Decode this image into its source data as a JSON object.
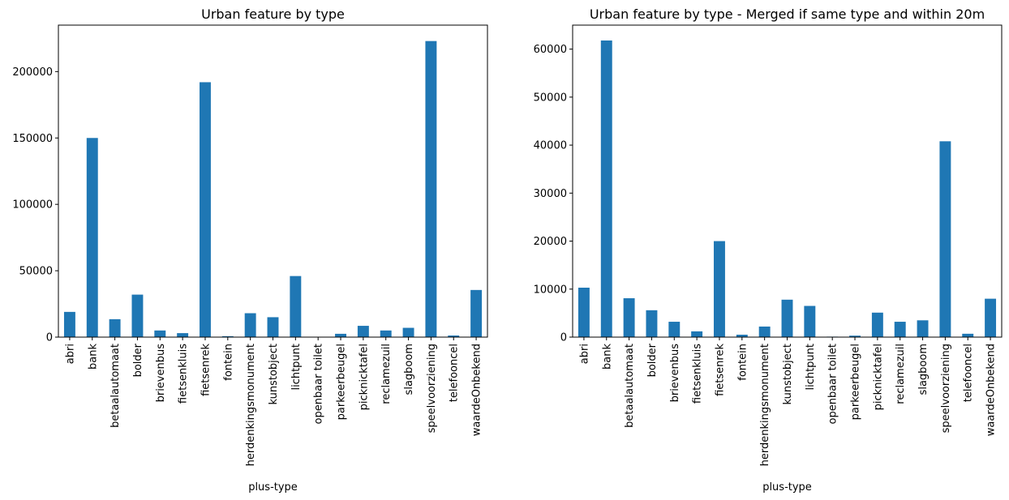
{
  "chart_data": [
    {
      "type": "bar",
      "title": "Urban feature by type",
      "xlabel": "plus-type",
      "ylabel": "",
      "ylim": [
        0,
        235000
      ],
      "yticks": [
        0,
        50000,
        100000,
        150000,
        200000
      ],
      "color": "#1f77b4",
      "categories": [
        "abri",
        "bank",
        "betaalautomaat",
        "bolder",
        "brievenbus",
        "fietsenkluis",
        "fietsenrek",
        "fontein",
        "herdenkingsmonument",
        "kunstobject",
        "lichtpunt",
        "openbaar toilet",
        "parkeerbeugel",
        "picknicktafel",
        "reclamezuil",
        "slagboom",
        "speelvoorziening",
        "telefooncel",
        "waardeOnbekend"
      ],
      "values": [
        19000,
        150000,
        13500,
        32000,
        5000,
        3000,
        192000,
        700,
        18000,
        15000,
        46000,
        300,
        2500,
        8500,
        5000,
        7000,
        223000,
        1200,
        35500
      ]
    },
    {
      "type": "bar",
      "title": "Urban feature by type - Merged if same type and within 20m",
      "xlabel": "plus-type",
      "ylabel": "",
      "ylim": [
        0,
        65000
      ],
      "yticks": [
        0,
        10000,
        20000,
        30000,
        40000,
        50000,
        60000
      ],
      "color": "#1f77b4",
      "categories": [
        "abri",
        "bank",
        "betaalautomaat",
        "bolder",
        "brievenbus",
        "fietsenkluis",
        "fietsenrek",
        "fontein",
        "herdenkingsmonument",
        "kunstobject",
        "lichtpunt",
        "openbaar toilet",
        "parkeerbeugel",
        "picknicktafel",
        "reclamezuil",
        "slagboom",
        "speelvoorziening",
        "telefooncel",
        "waardeOnbekend"
      ],
      "values": [
        10300,
        61800,
        8100,
        5600,
        3200,
        1200,
        20000,
        500,
        2200,
        7800,
        6500,
        100,
        300,
        5100,
        3200,
        3500,
        40800,
        700,
        8000
      ]
    }
  ]
}
